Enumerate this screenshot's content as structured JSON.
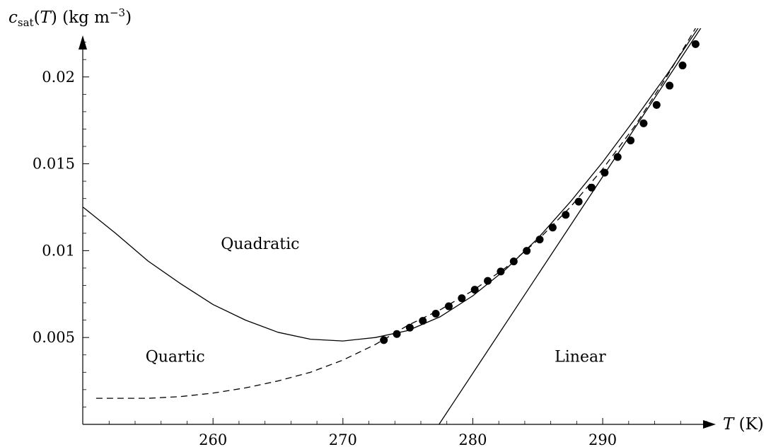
{
  "chart_data": {
    "type": "line",
    "xlabel": "T (K)",
    "ylabel": "c_sat(T) (kg m^-3)",
    "xlim": [
      249.97,
      298.0
    ],
    "ylim": [
      0.0,
      0.0228
    ],
    "x_ticks": [
      260,
      270,
      280,
      290
    ],
    "x_tick_labels": [
      "260",
      "270",
      "280",
      "290"
    ],
    "y_ticks": [
      0.005,
      0.01,
      0.015,
      0.02
    ],
    "y_tick_labels": [
      "0.005",
      "0.01",
      "0.015",
      "0.02"
    ],
    "grid": false,
    "legend": "none",
    "annotations": [
      {
        "text": "Quadratic",
        "x": 260.6,
        "y": 0.0101
      },
      {
        "text": "Quartic",
        "x": 254.8,
        "y": 0.0036
      },
      {
        "text": "Linear",
        "x": 286.3,
        "y": 0.0036
      }
    ],
    "series": [
      {
        "style": "markers",
        "x": [
          273.15,
          274.15,
          275.15,
          276.15,
          277.15,
          278.15,
          279.15,
          280.15,
          281.15,
          282.15,
          283.15,
          284.15,
          285.15,
          286.15,
          287.15,
          288.15,
          289.15,
          290.15,
          291.15,
          292.15,
          293.15,
          294.15,
          295.15,
          296.15,
          297.15
        ],
        "y": [
          0.00485,
          0.0052,
          0.00557,
          0.00596,
          0.00637,
          0.0068,
          0.00726,
          0.00775,
          0.00826,
          0.0088,
          0.00938,
          0.00999,
          0.01064,
          0.01133,
          0.01206,
          0.01282,
          0.01363,
          0.01449,
          0.01539,
          0.01634,
          0.01733,
          0.01839,
          0.0195,
          0.02066,
          0.02189
        ]
      },
      {
        "style": "solid",
        "x": [
          250.0,
          252.5,
          255.0,
          257.5,
          260.0,
          262.5,
          265.0,
          267.5,
          270.0,
          272.5,
          275.0,
          277.5,
          280.0,
          282.5,
          285.0,
          287.5,
          290.0,
          292.5,
          295.0,
          297.7
        ],
        "y": [
          0.0125,
          0.011,
          0.0094,
          0.0081,
          0.0069,
          0.006,
          0.0053,
          0.0049,
          0.0048,
          0.005,
          0.0054,
          0.0062,
          0.0074,
          0.0089,
          0.0107,
          0.0128,
          0.0151,
          0.0176,
          0.0202,
          0.0232
        ]
      },
      {
        "style": "dashed",
        "x": [
          251.0,
          253.0,
          255.0,
          257.5,
          260.0,
          262.5,
          265.0,
          267.5,
          270.0,
          272.5,
          275.0,
          277.5,
          280.0,
          282.5,
          285.0,
          287.5,
          290.0,
          292.5,
          295.0,
          297.7
        ],
        "y": [
          0.0015,
          0.0015,
          0.0015,
          0.0016,
          0.0018,
          0.0021,
          0.0025,
          0.003,
          0.0037,
          0.0046,
          0.0057,
          0.0066,
          0.0077,
          0.009,
          0.0106,
          0.0125,
          0.0147,
          0.0172,
          0.0201,
          0.0235
        ]
      },
      {
        "style": "solid",
        "x": [
          277.4,
          297.9
        ],
        "y": [
          0.0,
          0.0232
        ]
      }
    ]
  }
}
